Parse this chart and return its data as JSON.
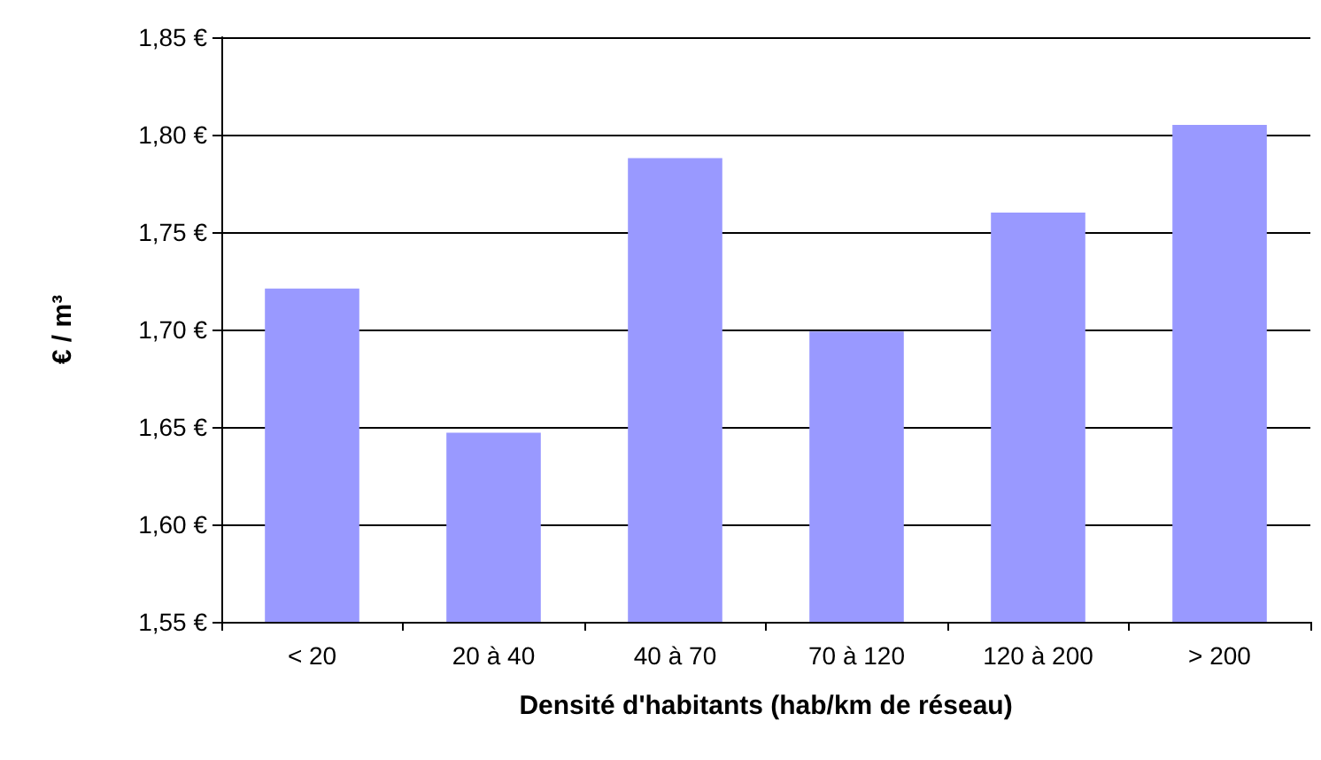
{
  "chart_data": {
    "type": "bar",
    "xlabel": "Densité d'habitants (hab/km de réseau)",
    "ylabel": "€ / m³",
    "categories": [
      "< 20",
      "20 à 40",
      "40 à 70",
      "70 à 120",
      "120 à 200",
      "> 200"
    ],
    "values": [
      1.721,
      1.647,
      1.788,
      1.699,
      1.76,
      1.805
    ],
    "color": "#9999ff",
    "ylim": [
      1.55,
      1.85
    ],
    "yticks": [
      {
        "value": 1.55,
        "label": "1,55 €"
      },
      {
        "value": 1.6,
        "label": "1,60 €"
      },
      {
        "value": 1.65,
        "label": "1,65 €"
      },
      {
        "value": 1.7,
        "label": "1,70 €"
      },
      {
        "value": 1.75,
        "label": "1,75 €"
      },
      {
        "value": 1.8,
        "label": "1,80 €"
      },
      {
        "value": 1.85,
        "label": "1,85 €"
      }
    ],
    "grid": "y"
  }
}
